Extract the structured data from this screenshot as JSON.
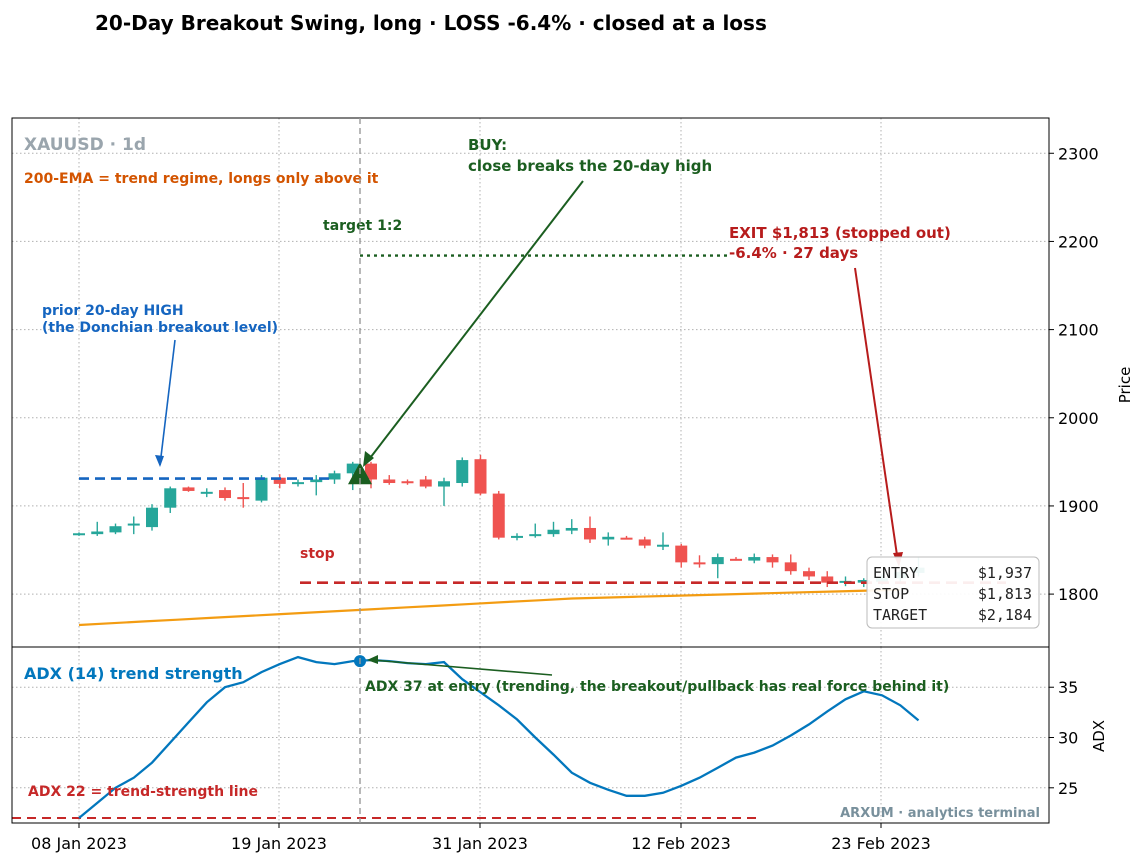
{
  "chart_data": {
    "title": "20-Day Breakout Swing, long · LOSS -6.4% · closed at a loss",
    "symbol_label": "XAUUSD · 1d",
    "watermark": "ARXUM · analytics terminal",
    "x_ticks": [
      "08 Jan 2023",
      "19 Jan 2023",
      "31 Jan 2023",
      "12 Feb 2023",
      "23 Feb 2023"
    ],
    "price_panel": {
      "type": "candlestick",
      "ylabel": "Price",
      "ylim": [
        1740,
        2340
      ],
      "y_ticks": [
        1800,
        1900,
        2000,
        2100,
        2200,
        2300
      ],
      "grid": true,
      "candles": [
        {
          "o": 1867,
          "h": 1870,
          "l": 1866,
          "c": 1869
        },
        {
          "o": 1868,
          "h": 1882,
          "l": 1866,
          "c": 1871
        },
        {
          "o": 1870,
          "h": 1880,
          "l": 1868,
          "c": 1877
        },
        {
          "o": 1880,
          "h": 1888,
          "l": 1868,
          "c": 1880
        },
        {
          "o": 1876,
          "h": 1902,
          "l": 1872,
          "c": 1898
        },
        {
          "o": 1898,
          "h": 1922,
          "l": 1892,
          "c": 1920
        },
        {
          "o": 1921,
          "h": 1922,
          "l": 1916,
          "c": 1917
        },
        {
          "o": 1916,
          "h": 1920,
          "l": 1910,
          "c": 1916
        },
        {
          "o": 1918,
          "h": 1921,
          "l": 1906,
          "c": 1909
        },
        {
          "o": 1910,
          "h": 1926,
          "l": 1898,
          "c": 1908
        },
        {
          "o": 1906,
          "h": 1935,
          "l": 1904,
          "c": 1932
        },
        {
          "o": 1932,
          "h": 1936,
          "l": 1920,
          "c": 1925
        },
        {
          "o": 1925,
          "h": 1930,
          "l": 1922,
          "c": 1927
        },
        {
          "o": 1927,
          "h": 1935,
          "l": 1912,
          "c": 1930
        },
        {
          "o": 1930,
          "h": 1940,
          "l": 1925,
          "c": 1937
        },
        {
          "o": 1937,
          "h": 1950,
          "l": 1918,
          "c": 1948
        },
        {
          "o": 1948,
          "h": 1950,
          "l": 1920,
          "c": 1930
        },
        {
          "o": 1930,
          "h": 1935,
          "l": 1924,
          "c": 1926
        },
        {
          "o": 1928,
          "h": 1930,
          "l": 1924,
          "c": 1927
        },
        {
          "o": 1930,
          "h": 1934,
          "l": 1920,
          "c": 1922
        },
        {
          "o": 1922,
          "h": 1932,
          "l": 1900,
          "c": 1928
        },
        {
          "o": 1926,
          "h": 1955,
          "l": 1922,
          "c": 1952
        },
        {
          "o": 1953,
          "h": 1958,
          "l": 1912,
          "c": 1914
        },
        {
          "o": 1914,
          "h": 1917,
          "l": 1862,
          "c": 1864
        },
        {
          "o": 1864,
          "h": 1869,
          "l": 1861,
          "c": 1866
        },
        {
          "o": 1866,
          "h": 1880,
          "l": 1864,
          "c": 1868
        },
        {
          "o": 1868,
          "h": 1882,
          "l": 1865,
          "c": 1873
        },
        {
          "o": 1872,
          "h": 1885,
          "l": 1868,
          "c": 1875
        },
        {
          "o": 1875,
          "h": 1888,
          "l": 1858,
          "c": 1862
        },
        {
          "o": 1862,
          "h": 1870,
          "l": 1855,
          "c": 1865
        },
        {
          "o": 1864,
          "h": 1866,
          "l": 1862,
          "c": 1863
        },
        {
          "o": 1862,
          "h": 1865,
          "l": 1852,
          "c": 1855
        },
        {
          "o": 1855,
          "h": 1870,
          "l": 1850,
          "c": 1856
        },
        {
          "o": 1855,
          "h": 1857,
          "l": 1830,
          "c": 1836
        },
        {
          "o": 1836,
          "h": 1844,
          "l": 1830,
          "c": 1834
        },
        {
          "o": 1834,
          "h": 1846,
          "l": 1818,
          "c": 1842
        },
        {
          "o": 1840,
          "h": 1842,
          "l": 1838,
          "c": 1839
        },
        {
          "o": 1838,
          "h": 1846,
          "l": 1835,
          "c": 1842
        },
        {
          "o": 1842,
          "h": 1845,
          "l": 1830,
          "c": 1836
        },
        {
          "o": 1836,
          "h": 1845,
          "l": 1822,
          "c": 1826
        },
        {
          "o": 1826,
          "h": 1830,
          "l": 1816,
          "c": 1820
        },
        {
          "o": 1820,
          "h": 1826,
          "l": 1808,
          "c": 1813
        },
        {
          "o": 1813,
          "h": 1820,
          "l": 1809,
          "c": 1815
        },
        {
          "o": 1813,
          "h": 1818,
          "l": 1808,
          "c": 1816
        },
        {
          "o": 1814,
          "h": 1822,
          "l": 1810,
          "c": 1818
        },
        {
          "o": 1818,
          "h": 1828,
          "l": 1814,
          "c": 1825
        },
        {
          "o": 1824,
          "h": 1842,
          "l": 1820,
          "c": 1830
        }
      ],
      "ema200": [
        1765,
        1767,
        1769,
        1771,
        1773,
        1775,
        1777,
        1779,
        1781,
        1783,
        1785,
        1787,
        1789,
        1791,
        1793,
        1795,
        1796,
        1797,
        1798,
        1799,
        1800,
        1801,
        1802,
        1803,
        1804,
        1805
      ],
      "levels": {
        "prior_high": 1931,
        "entry": 1937,
        "stop": 1813,
        "target": 2184
      },
      "annotations": {
        "ema_label": "200-EMA = trend regime, longs only above it",
        "prior_high_label_1": "prior 20-day HIGH",
        "prior_high_label_2": "(the Donchian breakout level)",
        "buy_label_1": "BUY:",
        "buy_label_2": "close breaks the 20-day high",
        "target_label": "target 1:2",
        "stop_label": "stop",
        "exit_label_1": "EXIT $1,813 (stopped out)",
        "exit_label_2": "-6.4%  ·  27 days"
      },
      "info_box": [
        {
          "key": "ENTRY",
          "value": "$1,937"
        },
        {
          "key": "STOP",
          "value": "$1,813"
        },
        {
          "key": "TARGET",
          "value": "$2,184"
        }
      ]
    },
    "adx_panel": {
      "type": "line",
      "ylabel": "ADX",
      "ylim": [
        21.5,
        39
      ],
      "y_ticks": [
        25,
        30,
        35
      ],
      "grid": true,
      "series": [
        {
          "name": "ADX (14) trend strength",
          "values": [
            22,
            23.5,
            25,
            26,
            27.5,
            29.5,
            31.5,
            33.5,
            35,
            35.5,
            36.5,
            37.3,
            38,
            37.5,
            37.3,
            37.6,
            37.7,
            37.6,
            37.4,
            37.3,
            37.5,
            35.8,
            34.5,
            33.2,
            31.8,
            30,
            28.3,
            26.5,
            25.5,
            24.8,
            24.2,
            24.2,
            24.5,
            25.2,
            26,
            27,
            28,
            28.5,
            29.2,
            30.2,
            31.3,
            32.6,
            33.8,
            34.6,
            34.2,
            33.2,
            31.7
          ]
        }
      ],
      "threshold": 22,
      "threshold_label": "ADX 22 = trend-strength line",
      "entry_label": "ADX 37 at entry (trending, the breakout/pullback has real force behind it)"
    },
    "colors": {
      "up": "#26a69a",
      "down": "#ef5350",
      "ema": "#f39c12",
      "prior_high": "#1565c0",
      "buy": "#1b5e20",
      "stop": "#c62828",
      "exit": "#b71c1c",
      "adx": "#0277bd",
      "ema_label": "#d35400",
      "symbol": "#9aa5ad",
      "watermark": "#78909c"
    }
  }
}
